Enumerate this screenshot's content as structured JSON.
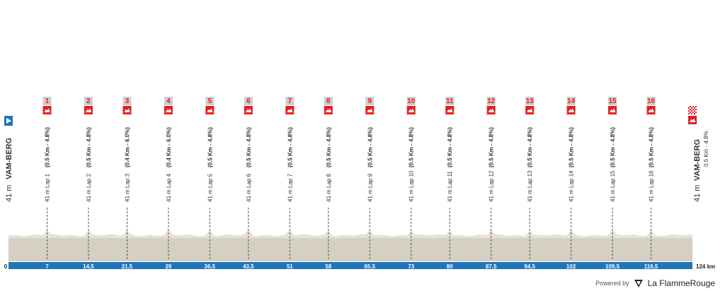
{
  "chart_data": {
    "type": "area",
    "title": "",
    "xlabel": "",
    "ylabel": "",
    "xlim": [
      0,
      124
    ],
    "ylim": [
      0,
      60
    ],
    "x_unit": "km",
    "start": {
      "km": 0,
      "elevation_label": "41 m",
      "name": "VAM-BERG"
    },
    "finish": {
      "km": 124,
      "elevation_label": "41 m",
      "name": "VAM-BERG",
      "climb": "0.5 Km - 4.8%"
    },
    "tick_labels": [
      "0",
      "7",
      "14,5",
      "21,5",
      "29",
      "36,5",
      "43,5",
      "51",
      "58",
      "65,5",
      "73",
      "80",
      "87,5",
      "94,5",
      "102",
      "109,5",
      "116,5",
      "124 km"
    ],
    "laps": [
      {
        "num": "1",
        "km": 7,
        "label": "41 m Lap 1",
        "climb": "(0.5 Km - 4.8%)"
      },
      {
        "num": "2",
        "km": 14.5,
        "label": "41 m Lap 2",
        "climb": "(0.5 Km - 4.8%)"
      },
      {
        "num": "3",
        "km": 21.5,
        "label": "41 m Lap 3",
        "climb": "(0.4 Km - 6.0%)"
      },
      {
        "num": "4",
        "km": 29,
        "label": "41 m Lap 4",
        "climb": "(0.4 Km - 6.0%)"
      },
      {
        "num": "5",
        "km": 36.5,
        "label": "41 m Lap 5",
        "climb": "(0.5 Km - 4.8%)"
      },
      {
        "num": "6",
        "km": 43.5,
        "label": "41 m Lap 6",
        "climb": "(0.5 Km - 4.8%)"
      },
      {
        "num": "7",
        "km": 51,
        "label": "41 m Lap 7",
        "climb": "(0.5 Km - 4.8%)"
      },
      {
        "num": "8",
        "km": 58,
        "label": "41 m Lap 8",
        "climb": "(0.5 Km - 4.8%)"
      },
      {
        "num": "9",
        "km": 65.5,
        "label": "41 m Lap 9",
        "climb": "(0.5 Km - 4.8%)"
      },
      {
        "num": "10",
        "km": 73,
        "label": "41 m Lap 10",
        "climb": "(0.5 Km - 4.8%)"
      },
      {
        "num": "11",
        "km": 80,
        "label": "41 m Lap 11",
        "climb": "(0.5 Km - 4.8%)"
      },
      {
        "num": "12",
        "km": 87.5,
        "label": "41 m Lap 12",
        "climb": "(0.5 Km - 4.8%)"
      },
      {
        "num": "13",
        "km": 94.5,
        "label": "41 m Lap 13",
        "climb": "(0.5 Km - 4.8%)"
      },
      {
        "num": "14",
        "km": 102,
        "label": "41 m Lap 14",
        "climb": "(0.5 Km - 4.8%)"
      },
      {
        "num": "15",
        "km": 109.5,
        "label": "41 m Lap 15",
        "climb": "(0.5 Km - 4.8%)"
      },
      {
        "num": "16",
        "km": 116.5,
        "label": "41 m Lap 16",
        "climb": "(0.5 Km - 4.8%)"
      }
    ],
    "profile": {
      "base_elevation": 41
    },
    "colors": {
      "profile_fill": "#d6cfc3",
      "profile_top": "#e6e1d9",
      "axis_bar": "#1f74ba",
      "marker_red": "#e31e24",
      "marker_grey": "#cfcfcf",
      "start_blue": "#1f74ba"
    }
  },
  "footer": {
    "powered": "Powered by",
    "brand": "La FlammeRouge"
  }
}
